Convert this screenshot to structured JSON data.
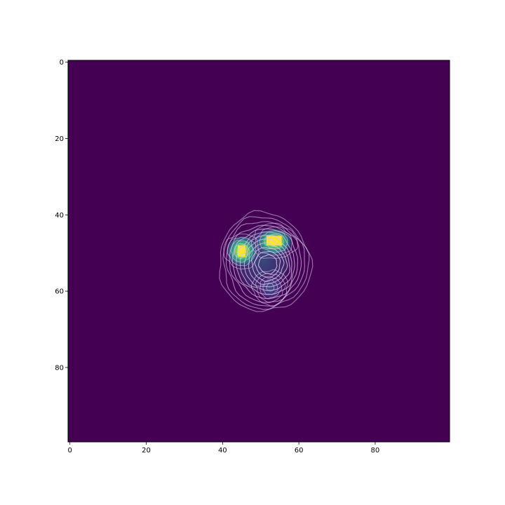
{
  "chart_data": {
    "type": "heatmap",
    "title": "",
    "xlabel": "",
    "ylabel": "",
    "xlim": [
      -0.5,
      99.5
    ],
    "ylim": [
      99.5,
      -0.5
    ],
    "y_axis_inverted": true,
    "grid": false,
    "colormap": "viridis",
    "background_color": "#440154",
    "x_ticks": [
      0,
      20,
      40,
      60,
      80
    ],
    "y_ticks": [
      0,
      20,
      40,
      60,
      80
    ],
    "x_tick_labels": [
      "0",
      "20",
      "40",
      "60",
      "80"
    ],
    "y_tick_labels": [
      "0",
      "20",
      "40",
      "60",
      "80"
    ],
    "peaks": [
      {
        "x": 45,
        "y": 49.5,
        "value": 0.95,
        "color": "#fde725"
      },
      {
        "x": 53.5,
        "y": 47,
        "value": 1.0,
        "color": "#fde725"
      },
      {
        "x": 52.5,
        "y": 59,
        "value": 0.3,
        "color": "#3b528b"
      }
    ],
    "contour_color": "#d9c4ea",
    "contour_levels": 12
  }
}
